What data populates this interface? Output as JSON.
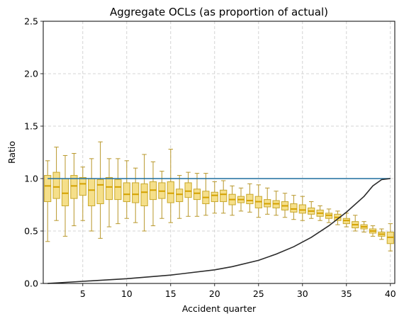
{
  "chart_data": {
    "type": "box",
    "title": "Aggregate OCLs (as proportion of actual)",
    "xlabel": "Accident quarter",
    "ylabel": "Ratio",
    "xlim": [
      0.5,
      40.5
    ],
    "ylim": [
      0,
      2.5
    ],
    "xticks": [
      5,
      10,
      15,
      20,
      25,
      30,
      35,
      40
    ],
    "yticks": [
      0.0,
      0.5,
      1.0,
      1.5,
      2.0,
      2.5
    ],
    "xtick_labels": [
      "5",
      "10",
      "15",
      "20",
      "25",
      "30",
      "35",
      "40"
    ],
    "ytick_labels": [
      "0.0",
      "0.5",
      "1.0",
      "1.5",
      "2.0",
      "2.5"
    ],
    "grid": true,
    "colors": {
      "box_fill": "#f5df8a",
      "box_edge": "#c9a82a",
      "median": "#d4a100",
      "whisker": "#b8972a",
      "reference_line": "#1f6f9f",
      "curve": "#2b2b2b",
      "grid": "#c8c8c8"
    },
    "boxes": [
      {
        "x": 1,
        "whislo": 0.4,
        "q1": 0.78,
        "med": 0.93,
        "q3": 1.03,
        "whishi": 1.17
      },
      {
        "x": 2,
        "whislo": 0.6,
        "q1": 0.81,
        "med": 0.92,
        "q3": 1.06,
        "whishi": 1.3
      },
      {
        "x": 3,
        "whislo": 0.45,
        "q1": 0.74,
        "med": 0.86,
        "q3": 1.0,
        "whishi": 1.22
      },
      {
        "x": 4,
        "whislo": 0.55,
        "q1": 0.81,
        "med": 0.93,
        "q3": 1.03,
        "whishi": 1.24
      },
      {
        "x": 5,
        "whislo": 0.6,
        "q1": 0.84,
        "med": 0.95,
        "q3": 1.01,
        "whishi": 1.11
      },
      {
        "x": 6,
        "whislo": 0.5,
        "q1": 0.74,
        "med": 0.89,
        "q3": 1.0,
        "whishi": 1.19
      },
      {
        "x": 7,
        "whislo": 0.43,
        "q1": 0.76,
        "med": 0.94,
        "q3": 0.99,
        "whishi": 1.35
      },
      {
        "x": 8,
        "whislo": 0.54,
        "q1": 0.8,
        "med": 0.92,
        "q3": 1.01,
        "whishi": 1.19
      },
      {
        "x": 9,
        "whislo": 0.57,
        "q1": 0.8,
        "med": 0.92,
        "q3": 0.99,
        "whishi": 1.19
      },
      {
        "x": 10,
        "whislo": 0.62,
        "q1": 0.78,
        "med": 0.85,
        "q3": 0.96,
        "whishi": 1.17
      },
      {
        "x": 11,
        "whislo": 0.58,
        "q1": 0.77,
        "med": 0.85,
        "q3": 0.96,
        "whishi": 1.1
      },
      {
        "x": 12,
        "whislo": 0.5,
        "q1": 0.74,
        "med": 0.87,
        "q3": 0.95,
        "whishi": 1.23
      },
      {
        "x": 13,
        "whislo": 0.55,
        "q1": 0.8,
        "med": 0.89,
        "q3": 0.97,
        "whishi": 1.16
      },
      {
        "x": 14,
        "whislo": 0.62,
        "q1": 0.81,
        "med": 0.88,
        "q3": 0.96,
        "whishi": 1.07
      },
      {
        "x": 15,
        "whislo": 0.58,
        "q1": 0.77,
        "med": 0.86,
        "q3": 0.97,
        "whishi": 1.28
      },
      {
        "x": 16,
        "whislo": 0.62,
        "q1": 0.78,
        "med": 0.85,
        "q3": 0.9,
        "whishi": 1.03
      },
      {
        "x": 17,
        "whislo": 0.64,
        "q1": 0.82,
        "med": 0.88,
        "q3": 0.96,
        "whishi": 1.06
      },
      {
        "x": 18,
        "whislo": 0.64,
        "q1": 0.8,
        "med": 0.86,
        "q3": 0.9,
        "whishi": 1.05
      },
      {
        "x": 19,
        "whislo": 0.65,
        "q1": 0.76,
        "med": 0.82,
        "q3": 0.88,
        "whishi": 1.05
      },
      {
        "x": 20,
        "whislo": 0.67,
        "q1": 0.78,
        "med": 0.84,
        "q3": 0.87,
        "whishi": 0.97
      },
      {
        "x": 21,
        "whislo": 0.67,
        "q1": 0.78,
        "med": 0.85,
        "q3": 0.89,
        "whishi": 0.98
      },
      {
        "x": 22,
        "whislo": 0.65,
        "q1": 0.75,
        "med": 0.8,
        "q3": 0.85,
        "whishi": 0.93
      },
      {
        "x": 23,
        "whislo": 0.69,
        "q1": 0.77,
        "med": 0.8,
        "q3": 0.83,
        "whishi": 0.91
      },
      {
        "x": 24,
        "whislo": 0.68,
        "q1": 0.76,
        "med": 0.79,
        "q3": 0.85,
        "whishi": 0.95
      },
      {
        "x": 25,
        "whislo": 0.63,
        "q1": 0.72,
        "med": 0.78,
        "q3": 0.83,
        "whishi": 0.94
      },
      {
        "x": 26,
        "whislo": 0.66,
        "q1": 0.73,
        "med": 0.76,
        "q3": 0.8,
        "whishi": 0.91
      },
      {
        "x": 27,
        "whislo": 0.65,
        "q1": 0.72,
        "med": 0.76,
        "q3": 0.79,
        "whishi": 0.88
      },
      {
        "x": 28,
        "whislo": 0.63,
        "q1": 0.7,
        "med": 0.74,
        "q3": 0.78,
        "whishi": 0.86
      },
      {
        "x": 29,
        "whislo": 0.61,
        "q1": 0.68,
        "med": 0.71,
        "q3": 0.76,
        "whishi": 0.84
      },
      {
        "x": 30,
        "whislo": 0.6,
        "q1": 0.67,
        "med": 0.7,
        "q3": 0.75,
        "whishi": 0.83
      },
      {
        "x": 31,
        "whislo": 0.62,
        "q1": 0.66,
        "med": 0.69,
        "q3": 0.72,
        "whishi": 0.78
      },
      {
        "x": 32,
        "whislo": 0.6,
        "q1": 0.64,
        "med": 0.67,
        "q3": 0.7,
        "whishi": 0.74
      },
      {
        "x": 33,
        "whislo": 0.58,
        "q1": 0.62,
        "med": 0.65,
        "q3": 0.67,
        "whishi": 0.71
      },
      {
        "x": 34,
        "whislo": 0.56,
        "q1": 0.6,
        "med": 0.63,
        "q3": 0.66,
        "whishi": 0.69
      },
      {
        "x": 35,
        "whislo": 0.54,
        "q1": 0.57,
        "med": 0.6,
        "q3": 0.62,
        "whishi": 0.67
      },
      {
        "x": 36,
        "whislo": 0.5,
        "q1": 0.53,
        "med": 0.56,
        "q3": 0.59,
        "whishi": 0.65
      },
      {
        "x": 37,
        "whislo": 0.49,
        "q1": 0.52,
        "med": 0.54,
        "q3": 0.56,
        "whishi": 0.59
      },
      {
        "x": 38,
        "whislo": 0.45,
        "q1": 0.48,
        "med": 0.5,
        "q3": 0.52,
        "whishi": 0.55
      },
      {
        "x": 39,
        "whislo": 0.42,
        "q1": 0.45,
        "med": 0.47,
        "q3": 0.49,
        "whishi": 0.52
      },
      {
        "x": 40,
        "whislo": 0.31,
        "q1": 0.38,
        "med": 0.44,
        "q3": 0.49,
        "whishi": 0.57
      }
    ],
    "reference_line": {
      "y": 1.0,
      "x": [
        1,
        40
      ]
    },
    "curve": {
      "x": [
        1,
        5,
        10,
        15,
        20,
        22,
        25,
        27,
        29,
        31,
        33,
        35,
        37,
        38,
        39,
        40
      ],
      "y": [
        0.0,
        0.02,
        0.045,
        0.08,
        0.13,
        0.16,
        0.22,
        0.28,
        0.35,
        0.44,
        0.55,
        0.68,
        0.83,
        0.93,
        0.99,
        1.0
      ]
    }
  }
}
